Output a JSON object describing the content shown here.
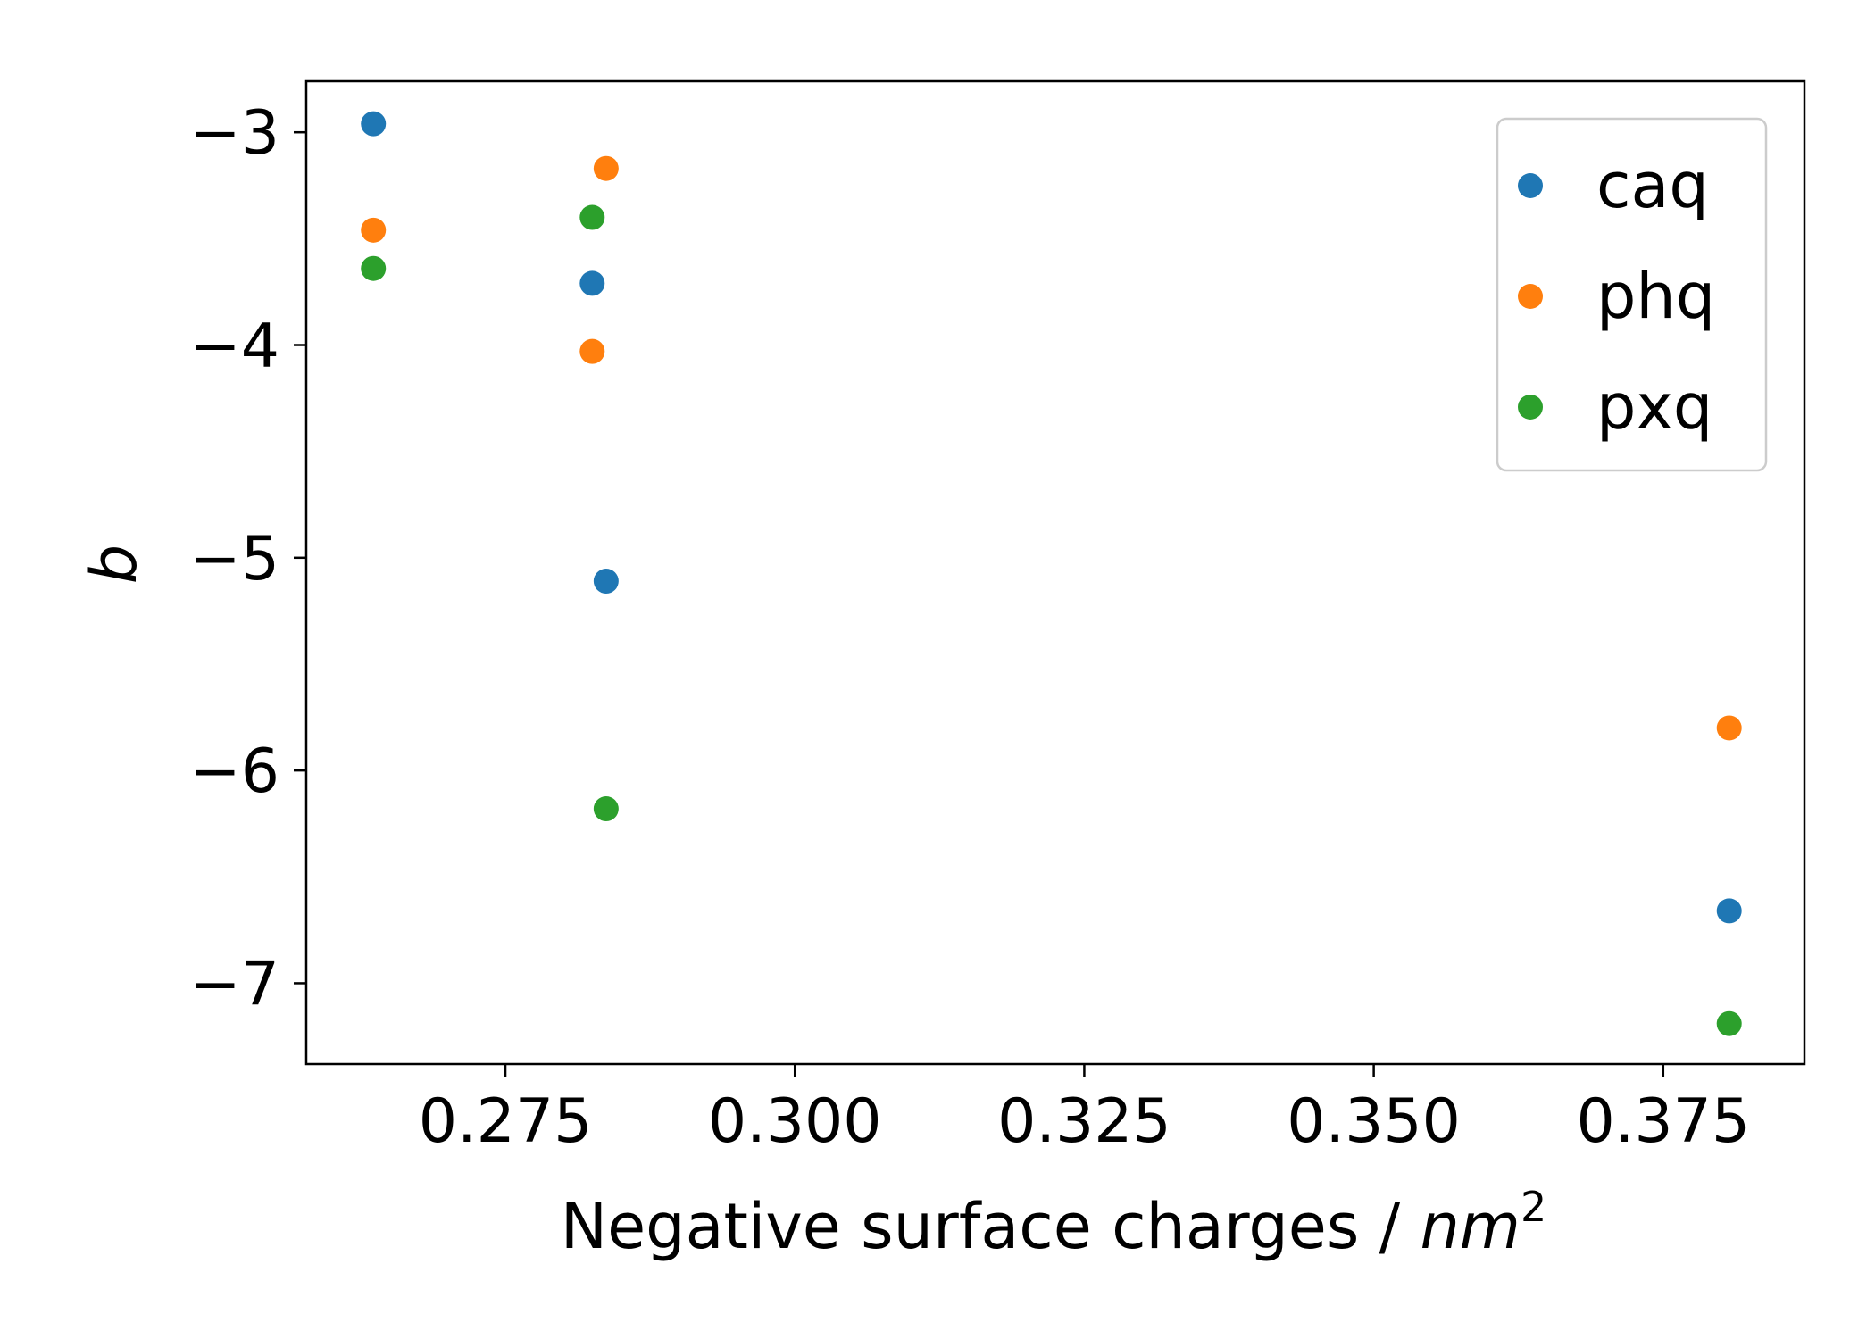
{
  "chart_data": {
    "type": "scatter",
    "title": "",
    "xlabel": {
      "main": "Negative surface charges / ",
      "unit_base": "nm",
      "unit_exp": "2"
    },
    "ylabel": "b",
    "xlim": [
      0.2578,
      0.3872
    ],
    "ylim": [
      -7.38,
      -2.76
    ],
    "xticks": [
      0.275,
      0.3,
      0.325,
      0.35,
      0.375
    ],
    "xtick_labels": [
      "0.275",
      "0.300",
      "0.325",
      "0.350",
      "0.375"
    ],
    "yticks": [
      -3,
      -4,
      -5,
      -6,
      -7
    ],
    "ytick_labels": [
      "−3",
      "−4",
      "−5",
      "−6",
      "−7"
    ],
    "legend_position": "top-right",
    "grid": false,
    "series": [
      {
        "name": "caq",
        "color": "#1f77b4",
        "x": [
          0.2636,
          0.2825,
          0.2837,
          0.3807
        ],
        "y": [
          -2.96,
          -3.71,
          -5.11,
          -6.66
        ]
      },
      {
        "name": "phq",
        "color": "#ff7f0e",
        "x": [
          0.2636,
          0.2837,
          0.2825,
          0.3807
        ],
        "y": [
          -3.46,
          -3.17,
          -4.03,
          -5.8
        ]
      },
      {
        "name": "pxq",
        "color": "#2ca02c",
        "x": [
          0.2636,
          0.2825,
          0.2837,
          0.3807
        ],
        "y": [
          -3.64,
          -3.4,
          -6.18,
          -7.19
        ]
      }
    ]
  }
}
